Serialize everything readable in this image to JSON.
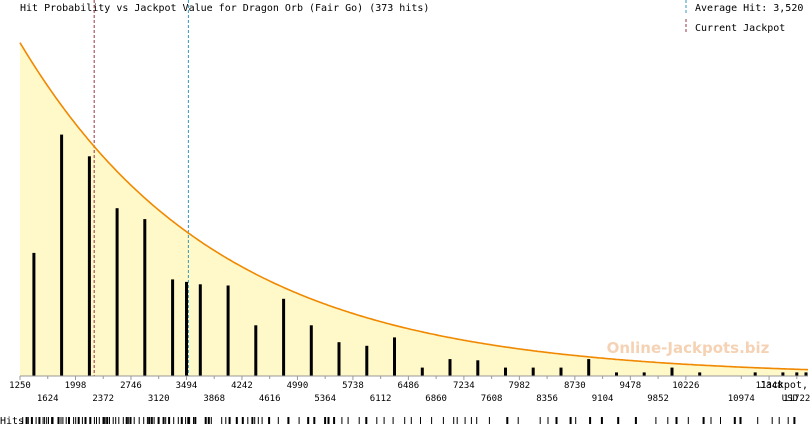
{
  "chart_data": {
    "type": "bar",
    "title": "Hit Probability vs Jackpot Value for Dragon Orb (Fair Go) (373 hits)",
    "xlabel_line1": "Jackpot,",
    "xlabel_line2": "USD",
    "rug_label": "Hits",
    "watermark": "Online-Jackpots.biz",
    "legend": [
      {
        "label": "Average Hit: 3,520",
        "color": "#3399bb",
        "style": "dashed"
      },
      {
        "label": "Current Jackpot",
        "color": "#993344",
        "style": "dashed"
      }
    ],
    "x_range": [
      1250,
      11900
    ],
    "ticks_upper": [
      1250,
      1998,
      2746,
      3494,
      4242,
      4990,
      5738,
      6486,
      7234,
      7982,
      8730,
      9478,
      10226,
      11348
    ],
    "ticks_lower": [
      1624,
      2372,
      3120,
      3868,
      4616,
      5364,
      6112,
      6860,
      7608,
      8356,
      9104,
      9852,
      10974,
      11722
    ],
    "average_hit": 3520,
    "current_jackpot": 2250,
    "bars": [
      {
        "x": 1437,
        "value": 102
      },
      {
        "x": 1811,
        "value": 200
      },
      {
        "x": 2185,
        "value": 182
      },
      {
        "x": 2559,
        "value": 139
      },
      {
        "x": 2933,
        "value": 130
      },
      {
        "x": 3307,
        "value": 80
      },
      {
        "x": 3494,
        "value": 78
      },
      {
        "x": 3681,
        "value": 76
      },
      {
        "x": 4055,
        "value": 75
      },
      {
        "x": 4429,
        "value": 42
      },
      {
        "x": 4803,
        "value": 64
      },
      {
        "x": 5177,
        "value": 42
      },
      {
        "x": 5551,
        "value": 28
      },
      {
        "x": 5925,
        "value": 25
      },
      {
        "x": 6299,
        "value": 32
      },
      {
        "x": 6673,
        "value": 7
      },
      {
        "x": 7047,
        "value": 14
      },
      {
        "x": 7421,
        "value": 13
      },
      {
        "x": 7795,
        "value": 7
      },
      {
        "x": 8169,
        "value": 7
      },
      {
        "x": 8543,
        "value": 7
      },
      {
        "x": 8917,
        "value": 14
      },
      {
        "x": 9291,
        "value": 3
      },
      {
        "x": 9665,
        "value": 3
      },
      {
        "x": 10039,
        "value": 7
      },
      {
        "x": 10413,
        "value": 3
      },
      {
        "x": 11161,
        "value": 3
      },
      {
        "x": 11535,
        "value": 3
      },
      {
        "x": 11722,
        "value": 3
      },
      {
        "x": 11909,
        "value": 3
      }
    ],
    "bar_ylim": [
      0,
      290
    ],
    "curve": {
      "type": "exponential",
      "start": [
        1250,
        100
      ],
      "decay_per_usd": 0.000373
    },
    "curve_ylim": [
      0,
      105
    ],
    "hits_rug_regions": [
      {
        "from": 1280,
        "to": 3600,
        "density": "dense"
      },
      {
        "from": 3600,
        "to": 7400,
        "density": "medium"
      },
      {
        "from": 7400,
        "to": 11900,
        "density": "sparse"
      }
    ]
  }
}
